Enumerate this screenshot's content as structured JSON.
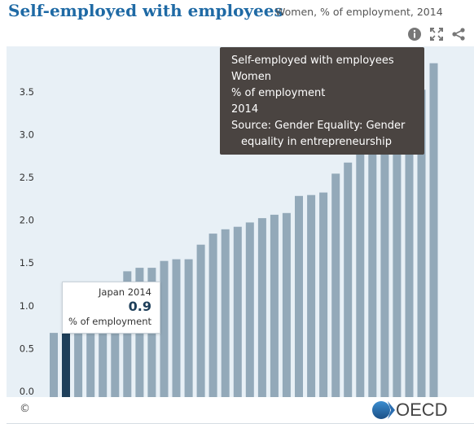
{
  "header": {
    "title": "Self-employed with employees",
    "subtitle": "Women, % of employment, 2014"
  },
  "icons": {
    "info": "info-icon",
    "expand": "expand-icon",
    "share": "share-icon"
  },
  "colors": {
    "title": "#1f6aa5",
    "plot_background": "#e8f0f6",
    "bar": "#93a9b9",
    "highlight_bar": "#1e3f5a",
    "tooltip_dark": "#4a4441"
  },
  "tooltip_source": {
    "line1": "Self-employed with employees",
    "line2": "Women",
    "line3": "% of employment",
    "line4": "2014",
    "line5": "Source: Gender Equality: Gender",
    "line6": "equality in entrepreneurship"
  },
  "tooltip_point": {
    "title": "Japan 2014",
    "value": "0.9",
    "unit": "% of employment"
  },
  "footer": {
    "copyright": "©",
    "brand": "OECD"
  },
  "chart_data": {
    "type": "bar",
    "title": "Self-employed with employees",
    "subtitle": "Women, % of employment, 2014",
    "ylim": [
      0,
      4.1
    ],
    "yticks": [
      "0.0",
      "0.5",
      "1.0",
      "1.5",
      "2.0",
      "2.5",
      "3.0",
      "3.5"
    ],
    "ytick_values": [
      0,
      0.5,
      1.0,
      1.5,
      2.0,
      2.5,
      3.0,
      3.5
    ],
    "grid": false,
    "highlight_label": "Japan 2014",
    "highlight_index": 1,
    "values": [
      0.75,
      0.9,
      1.0,
      1.1,
      1.2,
      1.3,
      1.47,
      1.51,
      1.51,
      1.59,
      1.61,
      1.61,
      1.78,
      1.91,
      1.96,
      1.99,
      2.04,
      2.09,
      2.13,
      2.15,
      2.35,
      2.36,
      2.39,
      2.61,
      2.74,
      2.95,
      3.02,
      3.18,
      3.2,
      3.36,
      3.59,
      3.9
    ]
  }
}
